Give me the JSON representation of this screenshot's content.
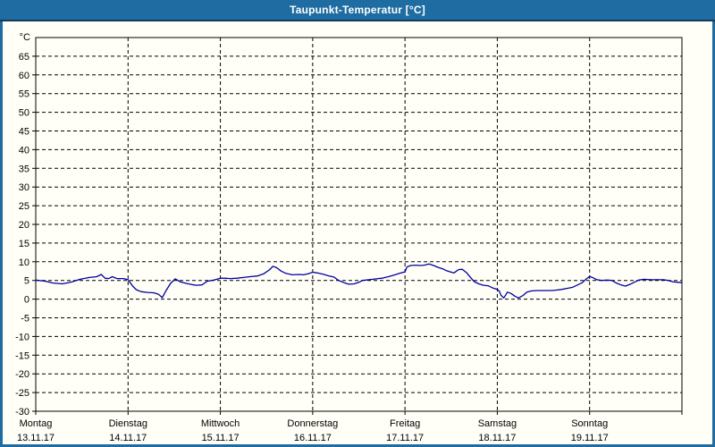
{
  "window": {
    "title": "Taupunkt-Temperatur [°C]"
  },
  "colors": {
    "titlebar_bg": "#1E6CA2",
    "titlebar_text": "#FFFFFF",
    "frame_line": "#143A5E",
    "plot_bg": "#FFFFF8",
    "grid_color": "#000000",
    "axis_color": "#000000",
    "line_color": "#0000A0",
    "text_color": "#000000"
  },
  "chart_data": {
    "type": "line",
    "title": "Taupunkt-Temperatur [°C]",
    "ylabel": "°C",
    "ylim": [
      -30,
      70
    ],
    "y_tick_step": 5,
    "y_tick_labels": [
      65,
      60,
      55,
      50,
      45,
      40,
      35,
      30,
      25,
      20,
      15,
      10,
      5,
      0,
      -5,
      -10,
      -15,
      -20,
      -25,
      -30
    ],
    "grid": "dashed",
    "legend": "none",
    "x_days": [
      {
        "name": "Montag",
        "date": "13.11.17"
      },
      {
        "name": "Dienstag",
        "date": "14.11.17"
      },
      {
        "name": "Mittwoch",
        "date": "15.11.17"
      },
      {
        "name": "Donnerstag",
        "date": "16.11.17"
      },
      {
        "name": "Freitag",
        "date": "17.11.17"
      },
      {
        "name": "Samstag",
        "date": "18.11.17"
      },
      {
        "name": "Sonntag",
        "date": "19.11.17"
      }
    ],
    "series": [
      {
        "name": "Taupunkt",
        "color": "#0000A0",
        "points": [
          [
            0.0,
            5.1
          ],
          [
            0.1,
            4.8
          ],
          [
            0.19,
            4.3
          ],
          [
            0.29,
            4.1
          ],
          [
            0.39,
            4.6
          ],
          [
            0.48,
            5.3
          ],
          [
            0.58,
            5.8
          ],
          [
            0.66,
            6.0
          ],
          [
            0.71,
            6.6
          ],
          [
            0.75,
            5.6
          ],
          [
            0.79,
            5.5
          ],
          [
            0.83,
            6.0
          ],
          [
            0.88,
            5.5
          ],
          [
            0.95,
            5.5
          ],
          [
            1.0,
            5.2
          ],
          [
            1.05,
            3.5
          ],
          [
            1.09,
            2.5
          ],
          [
            1.14,
            2.0
          ],
          [
            1.21,
            1.8
          ],
          [
            1.28,
            1.7
          ],
          [
            1.33,
            1.3
          ],
          [
            1.37,
            0.4
          ],
          [
            1.41,
            2.2
          ],
          [
            1.46,
            4.2
          ],
          [
            1.51,
            5.4
          ],
          [
            1.57,
            4.6
          ],
          [
            1.63,
            4.2
          ],
          [
            1.69,
            3.9
          ],
          [
            1.74,
            3.7
          ],
          [
            1.8,
            3.8
          ],
          [
            1.86,
            4.8
          ],
          [
            1.93,
            5.1
          ],
          [
            2.0,
            5.6
          ],
          [
            2.05,
            5.6
          ],
          [
            2.11,
            5.5
          ],
          [
            2.18,
            5.6
          ],
          [
            2.25,
            5.8
          ],
          [
            2.32,
            6.0
          ],
          [
            2.4,
            6.2
          ],
          [
            2.47,
            6.8
          ],
          [
            2.53,
            7.8
          ],
          [
            2.57,
            8.8
          ],
          [
            2.61,
            8.4
          ],
          [
            2.66,
            7.5
          ],
          [
            2.71,
            6.9
          ],
          [
            2.78,
            6.5
          ],
          [
            2.85,
            6.6
          ],
          [
            2.9,
            6.5
          ],
          [
            2.95,
            6.8
          ],
          [
            3.0,
            7.2
          ],
          [
            3.05,
            7.0
          ],
          [
            3.11,
            6.7
          ],
          [
            3.18,
            6.2
          ],
          [
            3.23,
            5.9
          ],
          [
            3.28,
            5.0
          ],
          [
            3.34,
            4.4
          ],
          [
            3.39,
            4.0
          ],
          [
            3.45,
            4.1
          ],
          [
            3.5,
            4.5
          ],
          [
            3.54,
            5.0
          ],
          [
            3.61,
            5.2
          ],
          [
            3.68,
            5.4
          ],
          [
            3.75,
            5.6
          ],
          [
            3.82,
            6.0
          ],
          [
            3.88,
            6.4
          ],
          [
            3.94,
            6.9
          ],
          [
            4.0,
            7.3
          ],
          [
            4.02,
            8.6
          ],
          [
            4.06,
            9.0
          ],
          [
            4.12,
            9.1
          ],
          [
            4.16,
            9.0
          ],
          [
            4.21,
            9.1
          ],
          [
            4.26,
            9.4
          ],
          [
            4.31,
            9.0
          ],
          [
            4.36,
            8.5
          ],
          [
            4.41,
            8.1
          ],
          [
            4.45,
            7.6
          ],
          [
            4.49,
            7.3
          ],
          [
            4.53,
            7.0
          ],
          [
            4.58,
            7.9
          ],
          [
            4.62,
            8.0
          ],
          [
            4.67,
            7.0
          ],
          [
            4.72,
            5.5
          ],
          [
            4.75,
            4.7
          ],
          [
            4.8,
            4.1
          ],
          [
            4.85,
            3.7
          ],
          [
            4.9,
            3.6
          ],
          [
            4.95,
            3.0
          ],
          [
            5.0,
            2.6
          ],
          [
            5.02,
            2.2
          ],
          [
            5.04,
            1.0
          ],
          [
            5.07,
            0.3
          ],
          [
            5.11,
            1.9
          ],
          [
            5.15,
            1.5
          ],
          [
            5.19,
            0.8
          ],
          [
            5.23,
            0.3
          ],
          [
            5.28,
            1.0
          ],
          [
            5.32,
            1.9
          ],
          [
            5.37,
            2.2
          ],
          [
            5.43,
            2.3
          ],
          [
            5.5,
            2.3
          ],
          [
            5.57,
            2.3
          ],
          [
            5.63,
            2.4
          ],
          [
            5.7,
            2.6
          ],
          [
            5.76,
            2.9
          ],
          [
            5.82,
            3.2
          ],
          [
            5.87,
            3.8
          ],
          [
            5.92,
            4.4
          ],
          [
            5.96,
            5.3
          ],
          [
            6.0,
            6.1
          ],
          [
            6.04,
            5.7
          ],
          [
            6.08,
            5.2
          ],
          [
            6.13,
            5.0
          ],
          [
            6.19,
            5.1
          ],
          [
            6.24,
            5.0
          ],
          [
            6.29,
            4.3
          ],
          [
            6.34,
            3.8
          ],
          [
            6.39,
            3.5
          ],
          [
            6.44,
            4.0
          ],
          [
            6.49,
            4.6
          ],
          [
            6.53,
            5.1
          ],
          [
            6.59,
            5.3
          ],
          [
            6.66,
            5.2
          ],
          [
            6.73,
            5.2
          ],
          [
            6.8,
            5.2
          ],
          [
            6.85,
            5.0
          ],
          [
            6.91,
            4.6
          ],
          [
            6.97,
            4.5
          ],
          [
            7.0,
            4.4
          ]
        ]
      }
    ]
  }
}
